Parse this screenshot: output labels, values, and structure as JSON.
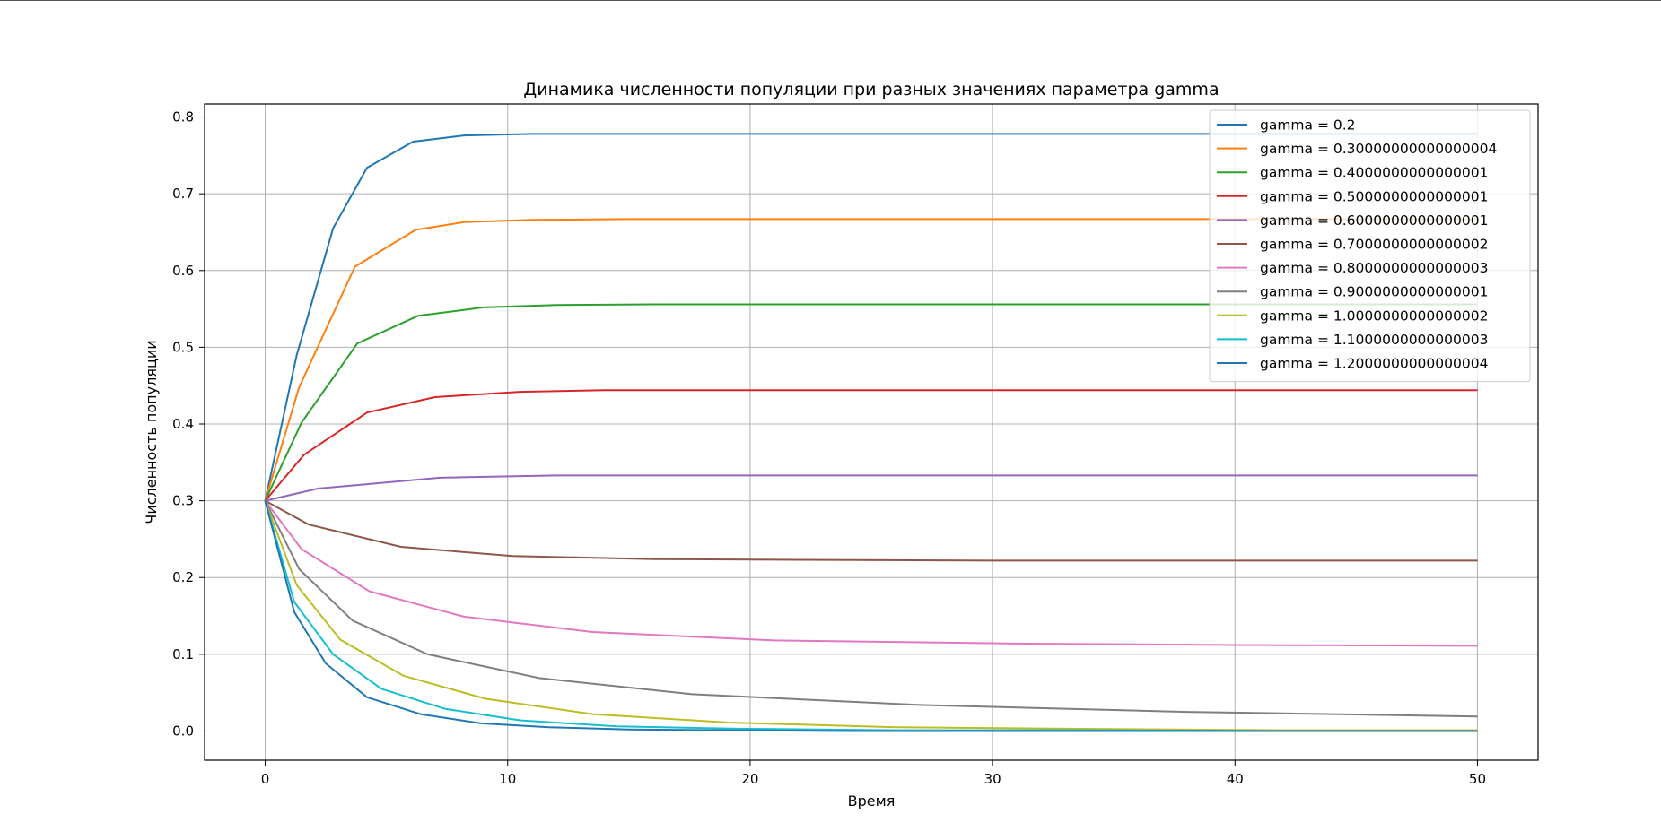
{
  "chart_data": {
    "type": "line",
    "title": "Динамика численности популяции при разных значениях параметра gamma",
    "xlabel": "Время",
    "ylabel": "Численность популяции",
    "xlim": [
      -2.5,
      52.5
    ],
    "ylim": [
      -0.038,
      0.817
    ],
    "xticks": [
      0,
      10,
      20,
      30,
      40,
      50
    ],
    "yticks": [
      0.0,
      0.1,
      0.2,
      0.3,
      0.4,
      0.5,
      0.6,
      0.7,
      0.8
    ],
    "xtick_labels": [
      "0",
      "10",
      "20",
      "30",
      "40",
      "50"
    ],
    "ytick_labels": [
      "0.0",
      "0.1",
      "0.2",
      "0.3",
      "0.4",
      "0.5",
      "0.6",
      "0.7",
      "0.8"
    ],
    "grid": true,
    "legend_position": "top-right",
    "series": [
      {
        "name": "gamma = 0.2",
        "color": "#1f77b4",
        "x": [
          0,
          1.3,
          2.8,
          4.2,
          6.1,
          8.2,
          11,
          15,
          20,
          30,
          40,
          50
        ],
        "y": [
          0.3,
          0.49,
          0.655,
          0.734,
          0.768,
          0.776,
          0.778,
          0.778,
          0.778,
          0.778,
          0.778,
          0.778
        ]
      },
      {
        "name": "gamma = 0.30000000000000004",
        "color": "#ff7f0e",
        "x": [
          0,
          1.4,
          3.7,
          6.2,
          8.2,
          11,
          15,
          20,
          30,
          40,
          50
        ],
        "y": [
          0.3,
          0.448,
          0.605,
          0.653,
          0.663,
          0.666,
          0.667,
          0.667,
          0.667,
          0.667,
          0.667
        ]
      },
      {
        "name": "gamma = 0.4000000000000001",
        "color": "#2ca02c",
        "x": [
          0,
          1.5,
          3.8,
          6.3,
          9,
          12,
          16,
          20,
          30,
          40,
          50
        ],
        "y": [
          0.3,
          0.402,
          0.505,
          0.541,
          0.552,
          0.555,
          0.556,
          0.556,
          0.556,
          0.556,
          0.556
        ]
      },
      {
        "name": "gamma = 0.5000000000000001",
        "color": "#d62728",
        "x": [
          0,
          1.6,
          4.2,
          7,
          10.5,
          14,
          20,
          30,
          40,
          50
        ],
        "y": [
          0.3,
          0.36,
          0.415,
          0.435,
          0.442,
          0.444,
          0.444,
          0.444,
          0.444,
          0.444
        ]
      },
      {
        "name": "gamma = 0.6000000000000001",
        "color": "#9467bd",
        "x": [
          0,
          2.2,
          7.2,
          12,
          20,
          30,
          40,
          50
        ],
        "y": [
          0.3,
          0.316,
          0.33,
          0.333,
          0.333,
          0.333,
          0.333,
          0.333
        ]
      },
      {
        "name": "gamma = 0.7000000000000002",
        "color": "#8c564b",
        "x": [
          0,
          1.8,
          5.6,
          10.2,
          16,
          22,
          30,
          40,
          50
        ],
        "y": [
          0.3,
          0.269,
          0.24,
          0.228,
          0.224,
          0.223,
          0.222,
          0.222,
          0.222
        ]
      },
      {
        "name": "gamma = 0.8000000000000003",
        "color": "#e377c2",
        "x": [
          0,
          1.5,
          4.3,
          8.2,
          13.5,
          21,
          31,
          41,
          50
        ],
        "y": [
          0.3,
          0.237,
          0.182,
          0.149,
          0.129,
          0.118,
          0.114,
          0.112,
          0.111
        ]
      },
      {
        "name": "gamma = 0.9000000000000001",
        "color": "#7f7f7f",
        "x": [
          0,
          1.4,
          3.6,
          6.7,
          11.3,
          17.6,
          27,
          38,
          50
        ],
        "y": [
          0.3,
          0.211,
          0.144,
          0.1,
          0.069,
          0.048,
          0.034,
          0.025,
          0.019
        ]
      },
      {
        "name": "gamma = 1.0000000000000002",
        "color": "#bcbd22",
        "x": [
          0,
          1.3,
          3.1,
          5.7,
          9.1,
          13.5,
          19.1,
          26,
          33,
          42,
          50
        ],
        "y": [
          0.3,
          0.19,
          0.119,
          0.072,
          0.042,
          0.022,
          0.011,
          0.005,
          0.003,
          0.001,
          0.001
        ]
      },
      {
        "name": "gamma = 1.1000000000000003",
        "color": "#17becf",
        "x": [
          0,
          1.2,
          2.8,
          4.8,
          7.4,
          10.5,
          14.5,
          19.5,
          26,
          34,
          42,
          50
        ],
        "y": [
          0.3,
          0.168,
          0.1,
          0.055,
          0.029,
          0.014,
          0.006,
          0.003,
          0.001,
          0.001,
          0.0,
          0.0
        ]
      },
      {
        "name": "gamma = 1.2000000000000004",
        "color": "#1f77b4",
        "x": [
          0,
          1.2,
          2.5,
          4.2,
          6.4,
          8.9,
          11.7,
          15,
          19,
          24,
          30,
          37,
          44,
          50
        ],
        "y": [
          0.3,
          0.155,
          0.088,
          0.044,
          0.022,
          0.01,
          0.005,
          0.002,
          0.001,
          0.0,
          0.0,
          0.0,
          0.0,
          0.0
        ]
      }
    ]
  }
}
